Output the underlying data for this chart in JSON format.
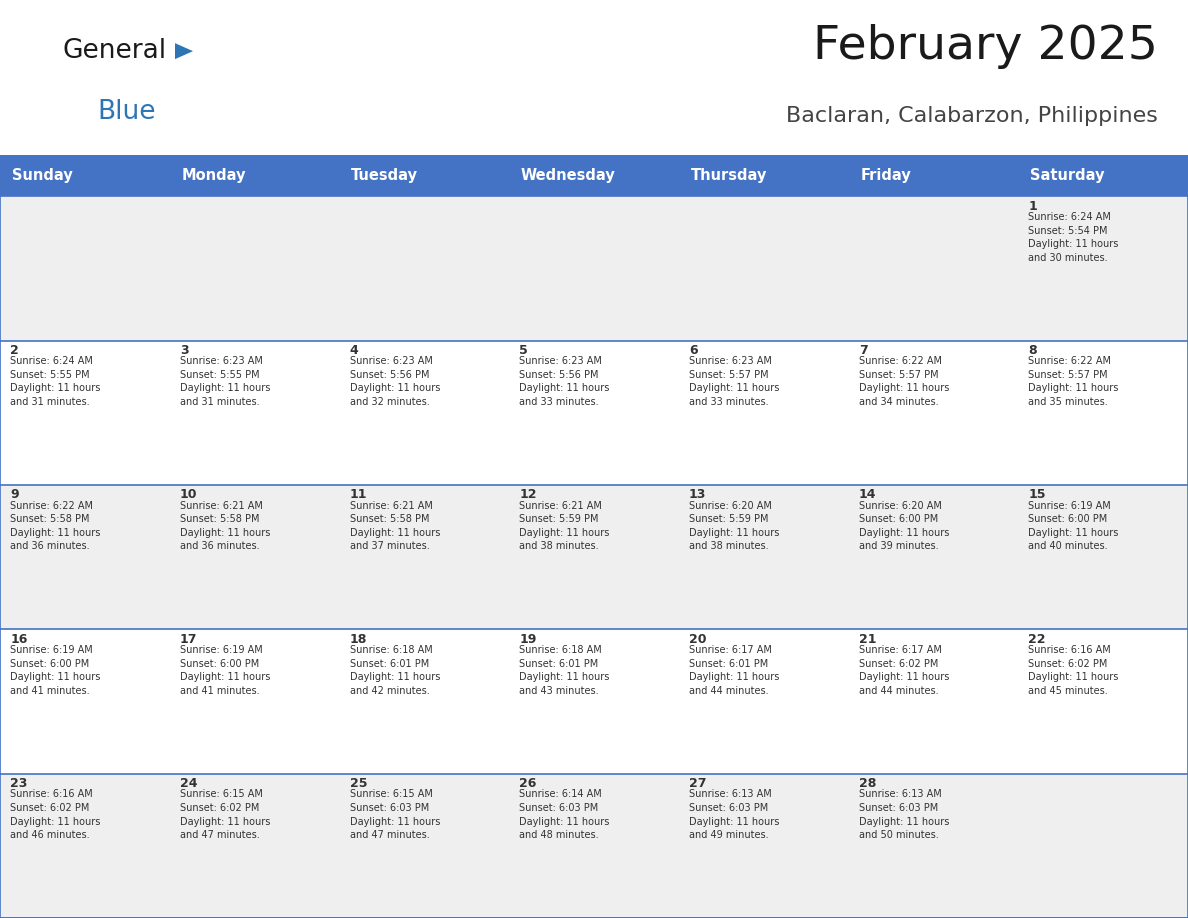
{
  "title": "February 2025",
  "subtitle": "Baclaran, Calabarzon, Philippines",
  "header_bg": "#4472C4",
  "header_text_color": "#FFFFFF",
  "cell_bg_light": "#EFEFEF",
  "cell_bg_white": "#FFFFFF",
  "border_color": "#4472C4",
  "text_color": "#333333",
  "days_of_week": [
    "Sunday",
    "Monday",
    "Tuesday",
    "Wednesday",
    "Thursday",
    "Friday",
    "Saturday"
  ],
  "calendar_data": [
    [
      "",
      "",
      "",
      "",
      "",
      "",
      "1\nSunrise: 6:24 AM\nSunset: 5:54 PM\nDaylight: 11 hours\nand 30 minutes."
    ],
    [
      "2\nSunrise: 6:24 AM\nSunset: 5:55 PM\nDaylight: 11 hours\nand 31 minutes.",
      "3\nSunrise: 6:23 AM\nSunset: 5:55 PM\nDaylight: 11 hours\nand 31 minutes.",
      "4\nSunrise: 6:23 AM\nSunset: 5:56 PM\nDaylight: 11 hours\nand 32 minutes.",
      "5\nSunrise: 6:23 AM\nSunset: 5:56 PM\nDaylight: 11 hours\nand 33 minutes.",
      "6\nSunrise: 6:23 AM\nSunset: 5:57 PM\nDaylight: 11 hours\nand 33 minutes.",
      "7\nSunrise: 6:22 AM\nSunset: 5:57 PM\nDaylight: 11 hours\nand 34 minutes.",
      "8\nSunrise: 6:22 AM\nSunset: 5:57 PM\nDaylight: 11 hours\nand 35 minutes."
    ],
    [
      "9\nSunrise: 6:22 AM\nSunset: 5:58 PM\nDaylight: 11 hours\nand 36 minutes.",
      "10\nSunrise: 6:21 AM\nSunset: 5:58 PM\nDaylight: 11 hours\nand 36 minutes.",
      "11\nSunrise: 6:21 AM\nSunset: 5:58 PM\nDaylight: 11 hours\nand 37 minutes.",
      "12\nSunrise: 6:21 AM\nSunset: 5:59 PM\nDaylight: 11 hours\nand 38 minutes.",
      "13\nSunrise: 6:20 AM\nSunset: 5:59 PM\nDaylight: 11 hours\nand 38 minutes.",
      "14\nSunrise: 6:20 AM\nSunset: 6:00 PM\nDaylight: 11 hours\nand 39 minutes.",
      "15\nSunrise: 6:19 AM\nSunset: 6:00 PM\nDaylight: 11 hours\nand 40 minutes."
    ],
    [
      "16\nSunrise: 6:19 AM\nSunset: 6:00 PM\nDaylight: 11 hours\nand 41 minutes.",
      "17\nSunrise: 6:19 AM\nSunset: 6:00 PM\nDaylight: 11 hours\nand 41 minutes.",
      "18\nSunrise: 6:18 AM\nSunset: 6:01 PM\nDaylight: 11 hours\nand 42 minutes.",
      "19\nSunrise: 6:18 AM\nSunset: 6:01 PM\nDaylight: 11 hours\nand 43 minutes.",
      "20\nSunrise: 6:17 AM\nSunset: 6:01 PM\nDaylight: 11 hours\nand 44 minutes.",
      "21\nSunrise: 6:17 AM\nSunset: 6:02 PM\nDaylight: 11 hours\nand 44 minutes.",
      "22\nSunrise: 6:16 AM\nSunset: 6:02 PM\nDaylight: 11 hours\nand 45 minutes."
    ],
    [
      "23\nSunrise: 6:16 AM\nSunset: 6:02 PM\nDaylight: 11 hours\nand 46 minutes.",
      "24\nSunrise: 6:15 AM\nSunset: 6:02 PM\nDaylight: 11 hours\nand 47 minutes.",
      "25\nSunrise: 6:15 AM\nSunset: 6:03 PM\nDaylight: 11 hours\nand 47 minutes.",
      "26\nSunrise: 6:14 AM\nSunset: 6:03 PM\nDaylight: 11 hours\nand 48 minutes.",
      "27\nSunrise: 6:13 AM\nSunset: 6:03 PM\nDaylight: 11 hours\nand 49 minutes.",
      "28\nSunrise: 6:13 AM\nSunset: 6:03 PM\nDaylight: 11 hours\nand 50 minutes.",
      ""
    ]
  ],
  "logo_general_color": "#1a1a1a",
  "logo_blue_color": "#2E75B6",
  "logo_triangle_color": "#2E75B6",
  "fig_width": 11.88,
  "fig_height": 9.18,
  "dpi": 100
}
